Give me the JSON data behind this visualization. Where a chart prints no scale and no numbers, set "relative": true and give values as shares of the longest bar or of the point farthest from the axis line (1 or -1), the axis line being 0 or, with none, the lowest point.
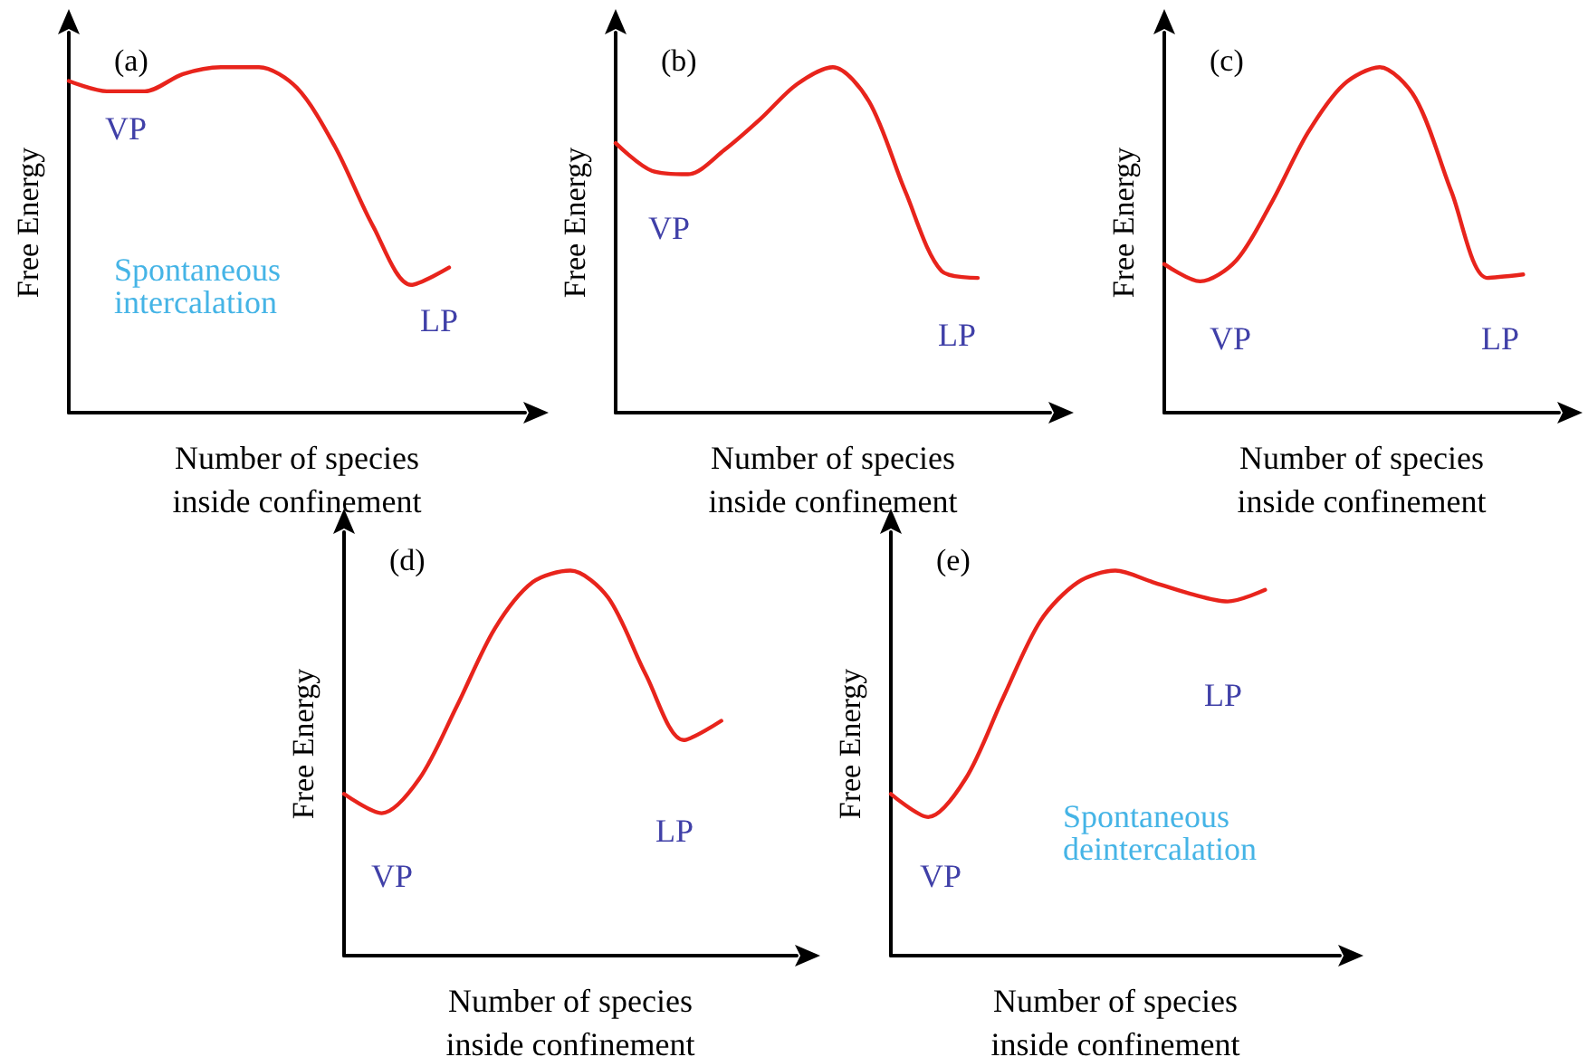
{
  "chart_data": [
    {
      "type": "line",
      "title": "(a)",
      "xlabel": "Number of species inside confinement",
      "ylabel": "Free Energy",
      "relative": true,
      "marker": "none",
      "categories": [
        null,
        null,
        null,
        null,
        null,
        null,
        null,
        null,
        null,
        null,
        null,
        null,
        null
      ],
      "series": [
        {
          "color": "#e8241c",
          "values": [
            0.96,
            0.93,
            0.93,
            0.98,
            1,
            1,
            0.94,
            0.77,
            0.54,
            0.37,
            0.42,
            null,
            null
          ]
        }
      ],
      "annotations": [
        "VP",
        "Spontaneous intercalation",
        "LP"
      ]
    },
    {
      "type": "line",
      "title": "(b)",
      "xlabel": "Number of species inside confinement",
      "ylabel": "Free Energy",
      "relative": true,
      "marker": "none",
      "categories": [
        null,
        null,
        null,
        null,
        null,
        null,
        null,
        null,
        null,
        null,
        null,
        null,
        null
      ],
      "series": [
        {
          "color": "#e8241c",
          "values": [
            0.78,
            0.7,
            0.69,
            0.76,
            0.85,
            0.95,
            1,
            0.9,
            0.64,
            0.41,
            0.39,
            null,
            null
          ]
        }
      ],
      "annotations": [
        "VP",
        "LP"
      ]
    },
    {
      "type": "line",
      "title": "(c)",
      "xlabel": "Number of species inside confinement",
      "ylabel": "Free Energy",
      "relative": true,
      "marker": "none",
      "categories": [
        null,
        null,
        null,
        null,
        null,
        null,
        null,
        null,
        null,
        null,
        null,
        null
      ],
      "series": [
        {
          "color": "#e8241c",
          "values": [
            0.43,
            0.38,
            0.44,
            0.61,
            0.81,
            0.95,
            1,
            0.91,
            0.64,
            0.39,
            0.4,
            null
          ]
        }
      ],
      "annotations": [
        "VP",
        "LP"
      ]
    },
    {
      "type": "line",
      "title": "(d)",
      "xlabel": "Number of species inside confinement",
      "ylabel": "Free Energy",
      "relative": true,
      "marker": "none",
      "categories": [
        null,
        null,
        null,
        null,
        null,
        null,
        null,
        null,
        null,
        null,
        null,
        null,
        null
      ],
      "series": [
        {
          "color": "#e8241c",
          "values": [
            0.42,
            0.37,
            0.46,
            0.65,
            0.85,
            0.97,
            1,
            0.93,
            0.73,
            0.56,
            0.61,
            null,
            null
          ]
        }
      ],
      "annotations": [
        "VP",
        "LP"
      ]
    },
    {
      "type": "line",
      "title": "(e)",
      "xlabel": "Number of species inside confinement",
      "ylabel": "Free Energy",
      "relative": true,
      "marker": "none",
      "categories": [
        null,
        null,
        null,
        null,
        null,
        null,
        null,
        null,
        null,
        null,
        null,
        null,
        null
      ],
      "series": [
        {
          "color": "#e8241c",
          "values": [
            0.42,
            0.36,
            0.46,
            0.67,
            0.87,
            0.97,
            1,
            0.97,
            0.94,
            0.92,
            0.95,
            null,
            null
          ]
        }
      ],
      "annotations": [
        "VP",
        "LP",
        "Spontaneous deintercalation"
      ]
    }
  ]
}
